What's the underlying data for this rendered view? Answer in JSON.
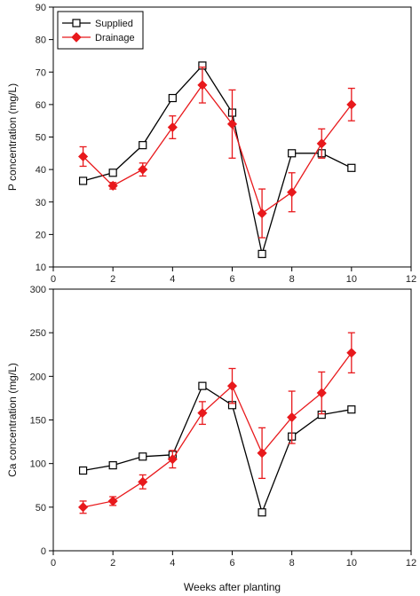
{
  "chart_data": [
    {
      "type": "line",
      "ylabel": "P concentration (mg/L)",
      "xlabel": "",
      "xlim": [
        0,
        12
      ],
      "ylim": [
        10,
        90
      ],
      "x_ticks": [
        "0",
        "2",
        "4",
        "6",
        "8",
        "10",
        "12"
      ],
      "y_ticks": [
        "10",
        "20",
        "30",
        "40",
        "50",
        "60",
        "70",
        "80",
        "90"
      ],
      "legend_position": "top-left",
      "series": [
        {
          "name": "Supplied",
          "color": "#000000",
          "marker": "open-square",
          "x": [
            1,
            2,
            3,
            4,
            5,
            6,
            7,
            8,
            9,
            10
          ],
          "y": [
            36.5,
            39,
            47.5,
            62,
            72,
            57.5,
            14,
            45,
            45,
            40.5
          ]
        },
        {
          "name": "Drainage",
          "color": "#e8191c",
          "marker": "filled-diamond",
          "x": [
            1,
            2,
            3,
            4,
            5,
            6,
            7,
            8,
            9,
            10
          ],
          "y": [
            44,
            35,
            40,
            53,
            66,
            54,
            26.5,
            33,
            48,
            60
          ],
          "error": [
            3,
            1,
            2,
            3.5,
            5.5,
            10.5,
            7.5,
            6,
            4.5,
            5
          ]
        }
      ]
    },
    {
      "type": "line",
      "ylabel": "Ca concentration (mg/L)",
      "xlabel": "Weeks after planting",
      "xlim": [
        0,
        12
      ],
      "ylim": [
        0,
        300
      ],
      "x_ticks": [
        "0",
        "2",
        "4",
        "6",
        "8",
        "10",
        "12"
      ],
      "y_ticks": [
        "0",
        "50",
        "100",
        "150",
        "200",
        "250",
        "300"
      ],
      "series": [
        {
          "name": "Supplied",
          "color": "#000000",
          "marker": "open-square",
          "x": [
            1,
            2,
            3,
            4,
            5,
            6,
            7,
            8,
            9,
            10
          ],
          "y": [
            92,
            98,
            108,
            110,
            189,
            167,
            44,
            131,
            156,
            162
          ]
        },
        {
          "name": "Drainage",
          "color": "#e8191c",
          "marker": "filled-diamond",
          "x": [
            1,
            2,
            3,
            4,
            5,
            6,
            7,
            8,
            9,
            10
          ],
          "y": [
            50,
            57,
            79,
            105,
            158,
            189,
            112,
            153,
            181,
            227
          ],
          "error": [
            7,
            5,
            8,
            10,
            13,
            20,
            29,
            30,
            24,
            23
          ]
        }
      ]
    }
  ]
}
